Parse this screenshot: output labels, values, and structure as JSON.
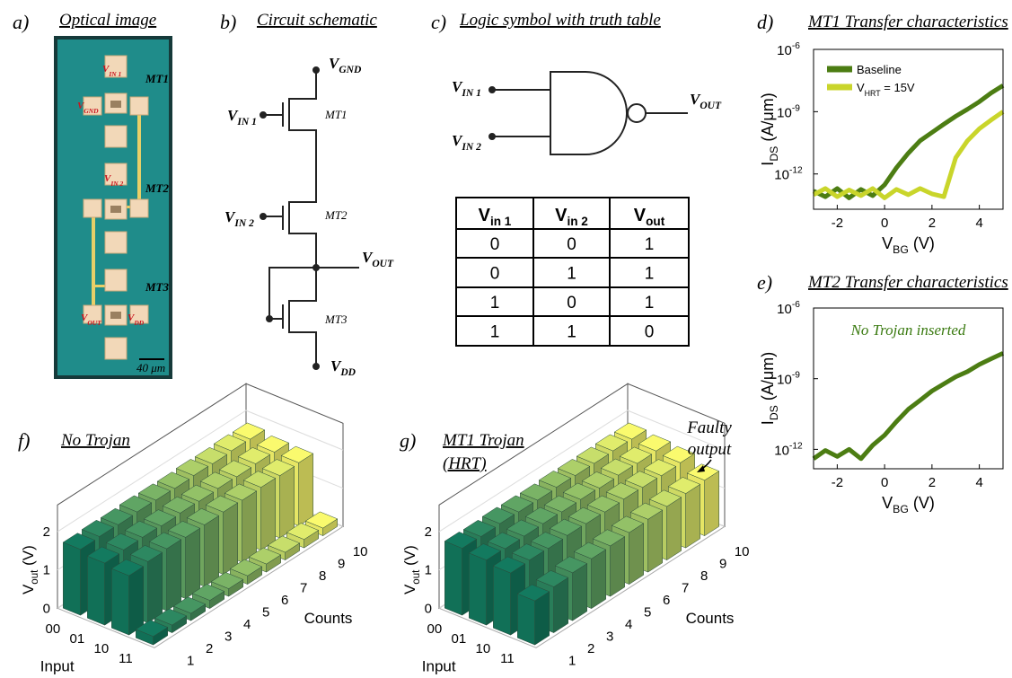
{
  "figure": {
    "panel_a": {
      "label": "a)",
      "title": "Optical image",
      "pads": [
        {
          "text": "V",
          "sub": "IN 1"
        },
        {
          "text": "V",
          "sub": "GND"
        },
        {
          "text": "V",
          "sub": "IN 2"
        },
        {
          "text": "V",
          "sub": "OUT"
        },
        {
          "text": "V",
          "sub": "DD"
        }
      ],
      "devices": [
        "MT1",
        "MT2",
        "MT3"
      ],
      "scale_bar": "40 μm"
    },
    "panel_b": {
      "label": "b)",
      "title": "Circuit schematic",
      "nodes": [
        {
          "text": "V",
          "sub": "GND"
        },
        {
          "text": "V",
          "sub": "IN 1"
        },
        {
          "text": "V",
          "sub": "IN 2"
        },
        {
          "text": "V",
          "sub": "OUT"
        },
        {
          "text": "V",
          "sub": "DD"
        }
      ],
      "devices": [
        "MT1",
        "MT2",
        "MT3"
      ]
    },
    "panel_c": {
      "label": "c)",
      "title": "Logic symbol with truth table",
      "inputs": [
        {
          "text": "V",
          "sub": "IN 1"
        },
        {
          "text": "V",
          "sub": "IN 2"
        }
      ],
      "output": {
        "text": "V",
        "sub": "OUT"
      },
      "table": {
        "header": [
          {
            "text": "V",
            "sub": "in 1"
          },
          {
            "text": "V",
            "sub": "in 2"
          },
          {
            "text": "V",
            "sub": "out"
          }
        ],
        "rows": [
          [
            0,
            0,
            1
          ],
          [
            0,
            1,
            1
          ],
          [
            1,
            0,
            1
          ],
          [
            1,
            1,
            0
          ]
        ]
      }
    }
  },
  "chart_data": [
    {
      "type": "line",
      "panel_label": "d)",
      "title": "MT1 Transfer characteristics",
      "xlabel": {
        "text": "V",
        "sub": "BG",
        "tail": " (V)"
      },
      "ylabel": {
        "text": "I",
        "sub": "DS",
        "tail": " (A/μm)"
      },
      "x": [
        -3,
        -2.5,
        -2,
        -1.5,
        -1,
        -0.5,
        0,
        0.5,
        1,
        1.5,
        2,
        2.5,
        3,
        3.5,
        4,
        4.5,
        5
      ],
      "series": [
        {
          "name": "Baseline",
          "color": "#4c7d13",
          "values": [
            1.5e-13,
            8e-14,
            2e-13,
            7e-14,
            1.8e-13,
            9e-14,
            3e-13,
            2e-12,
            1e-11,
            4e-11,
            1e-10,
            2.5e-10,
            6e-10,
            1.3e-09,
            3e-09,
            8e-09,
            1.8e-08
          ]
        },
        {
          "name": {
            "text": "V",
            "sub": "HRT",
            "tail": " = 15V"
          },
          "color": "#c9d52b",
          "values": [
            1e-13,
            2e-13,
            8e-14,
            1.7e-13,
            9e-14,
            2e-13,
            7e-14,
            1.8e-13,
            1e-13,
            2e-13,
            1.1e-13,
            8e-14,
            6e-12,
            4e-11,
            1.5e-10,
            4e-10,
            1e-09
          ]
        }
      ],
      "xlim": [
        -3,
        5
      ],
      "xticks": [
        -2,
        0,
        2,
        4
      ],
      "ylim": [
        2e-14,
        1e-06
      ],
      "yscale": "log",
      "yticks": [
        {
          "value": 1e-06,
          "label": "10",
          "exponent": "-6"
        },
        {
          "value": 1e-09,
          "label": "10",
          "exponent": "-9"
        },
        {
          "value": 1e-12,
          "label": "10",
          "exponent": "-12"
        }
      ],
      "legend": "upper left"
    },
    {
      "type": "line",
      "panel_label": "e)",
      "title": "MT2 Transfer characteristics",
      "annotation": "No Trojan inserted",
      "xlabel": {
        "text": "V",
        "sub": "BG",
        "tail": " (V)"
      },
      "ylabel": {
        "text": "I",
        "sub": "DS",
        "tail": " (A/μm)"
      },
      "x": [
        -3,
        -2.5,
        -2,
        -1.5,
        -1,
        -0.5,
        0,
        0.5,
        1,
        1.5,
        2,
        2.5,
        3,
        3.5,
        4,
        4.5,
        5
      ],
      "series": [
        {
          "color": "#4c7d13",
          "values": [
            4e-13,
            9e-13,
            5e-13,
            1e-12,
            4e-13,
            1.5e-12,
            4e-12,
            1.5e-11,
            5e-11,
            1.2e-10,
            3e-10,
            6e-10,
            1.2e-09,
            2e-09,
            4e-09,
            7e-09,
            1.2e-08
          ]
        }
      ],
      "xlim": [
        -3,
        5
      ],
      "xticks": [
        -2,
        0,
        2,
        4
      ],
      "ylim": [
        1.5e-13,
        1e-06
      ],
      "yscale": "log",
      "yticks": [
        {
          "value": 1e-06,
          "label": "10",
          "exponent": "-6"
        },
        {
          "value": 1e-09,
          "label": "10",
          "exponent": "-9"
        },
        {
          "value": 1e-12,
          "label": "10",
          "exponent": "-12"
        }
      ]
    },
    {
      "type": "bar3d",
      "panel_label": "f)",
      "title": [
        "No Trojan"
      ],
      "zlabel": {
        "text": "V",
        "sub": "out",
        "tail": " (V)"
      },
      "xlabel": "Input",
      "ylabel": "Counts",
      "categories": [
        "00",
        "01",
        "10",
        "11"
      ],
      "counts": [
        1,
        2,
        3,
        4,
        5,
        6,
        7,
        8,
        9,
        10
      ],
      "values": [
        [
          1.72,
          1.74,
          1.73,
          1.75,
          1.74,
          1.73,
          1.75,
          1.74,
          1.76,
          1.75
        ],
        [
          1.62,
          1.65,
          1.66,
          1.64,
          1.66,
          1.65,
          1.67,
          1.66,
          1.68,
          1.67
        ],
        [
          1.55,
          1.6,
          1.62,
          1.6,
          1.61,
          1.63,
          1.62,
          1.64,
          1.63,
          1.65
        ],
        [
          0.22,
          0.2,
          0.19,
          0.21,
          0.2,
          0.22,
          0.21,
          0.2,
          0.22,
          0.2
        ]
      ],
      "zlim": [
        0,
        2.7
      ],
      "zticks": [
        0,
        1,
        2
      ],
      "colormap": [
        "#137a5f",
        "#fafa6e"
      ]
    },
    {
      "type": "bar3d",
      "panel_label": "g)",
      "title": [
        "MT1 Trojan",
        "(HRT)"
      ],
      "annotation": [
        "Faulty",
        "output"
      ],
      "zlabel": {
        "text": "V",
        "sub": "out",
        "tail": " (V)"
      },
      "xlabel": "Input",
      "ylabel": "Counts",
      "categories": [
        "00",
        "01",
        "10",
        "11"
      ],
      "counts": [
        1,
        2,
        3,
        4,
        5,
        6,
        7,
        8,
        9,
        10
      ],
      "values": [
        [
          1.75,
          1.74,
          1.76,
          1.75,
          1.74,
          1.76,
          1.75,
          1.75,
          1.76,
          1.75
        ],
        [
          1.7,
          1.68,
          1.69,
          1.7,
          1.69,
          1.7,
          1.68,
          1.7,
          1.69,
          1.7
        ],
        [
          1.62,
          1.64,
          1.63,
          1.65,
          1.64,
          1.63,
          1.65,
          1.64,
          1.63,
          1.65
        ],
        [
          1.15,
          1.2,
          1.25,
          1.3,
          1.32,
          1.35,
          1.38,
          1.4,
          1.42,
          1.45
        ]
      ],
      "zlim": [
        0,
        2.7
      ],
      "zticks": [
        0,
        1,
        2
      ],
      "colormap": [
        "#137a5f",
        "#fafa6e"
      ]
    }
  ]
}
